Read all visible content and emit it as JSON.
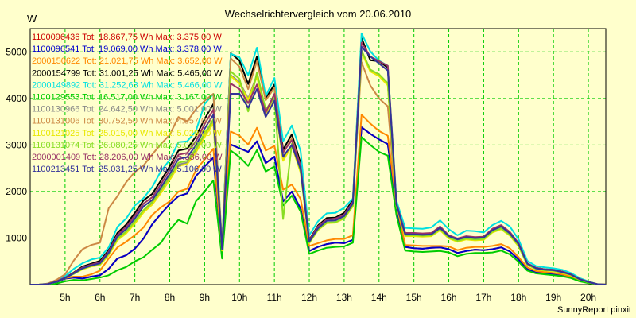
{
  "chart_data": {
    "type": "line",
    "title": "Wechselrichtervergleich vom 20.06.2010",
    "ylabel": "W",
    "xlabel": "",
    "footer": "SunnyReport pinxit",
    "ylim": [
      0,
      5500
    ],
    "xlim": [
      4.0,
      20.5
    ],
    "grid": true,
    "legend_placement": "top-left",
    "x_ticks": [
      {
        "value": 5,
        "label": "5h"
      },
      {
        "value": 6,
        "label": "6h"
      },
      {
        "value": 7,
        "label": "7h"
      },
      {
        "value": 8,
        "label": "8h"
      },
      {
        "value": 9,
        "label": "9h"
      },
      {
        "value": 10,
        "label": "10h"
      },
      {
        "value": 11,
        "label": "11h"
      },
      {
        "value": 12,
        "label": "12h"
      },
      {
        "value": 13,
        "label": "13h"
      },
      {
        "value": 14,
        "label": "14h"
      },
      {
        "value": 15,
        "label": "15h"
      },
      {
        "value": 16,
        "label": "16h"
      },
      {
        "value": 17,
        "label": "17h"
      },
      {
        "value": 18,
        "label": "18h"
      },
      {
        "value": 19,
        "label": "19h"
      },
      {
        "value": 20,
        "label": "20h"
      }
    ],
    "y_ticks": [
      {
        "value": 1000,
        "label": "1000"
      },
      {
        "value": 2000,
        "label": "2000"
      },
      {
        "value": 3000,
        "label": "3000"
      },
      {
        "value": 4000,
        "label": "4000"
      },
      {
        "value": 5000,
        "label": "5000"
      }
    ],
    "x": [
      4.0,
      4.25,
      4.5,
      4.75,
      5.0,
      5.25,
      5.5,
      5.75,
      6.0,
      6.25,
      6.5,
      6.75,
      7.0,
      7.25,
      7.5,
      7.75,
      8.0,
      8.25,
      8.5,
      8.75,
      9.0,
      9.25,
      9.5,
      9.75,
      10.0,
      10.25,
      10.5,
      10.75,
      11.0,
      11.25,
      11.5,
      11.75,
      12.0,
      12.25,
      12.5,
      12.75,
      13.0,
      13.25,
      13.5,
      13.75,
      14.0,
      14.25,
      14.5,
      14.75,
      15.0,
      15.25,
      15.5,
      15.75,
      16.0,
      16.25,
      16.5,
      16.75,
      17.0,
      17.25,
      17.5,
      17.75,
      18.0,
      18.25,
      18.5,
      18.75,
      19.0,
      19.25,
      19.5,
      19.75,
      20.0,
      20.25,
      20.5
    ],
    "series": [
      {
        "name": "1100096436 Tot: 18.867,75 Wh Max: 3.375,00 W",
        "color": "#cc0000",
        "values": [
          0,
          0,
          10,
          50,
          130,
          150,
          130,
          170,
          200,
          340,
          560,
          630,
          770,
          990,
          1300,
          1520,
          1730,
          1900,
          1960,
          2330,
          2540,
          2730,
          700,
          3010,
          2930,
          2850,
          3080,
          2610,
          2750,
          1790,
          2000,
          1630,
          720,
          810,
          870,
          900,
          890,
          960,
          3380,
          3240,
          3120,
          3020,
          1630,
          810,
          780,
          770,
          790,
          800,
          760,
          680,
          720,
          750,
          740,
          760,
          800,
          710,
          540,
          330,
          270,
          250,
          220,
          200,
          160,
          80,
          40,
          10,
          0
        ]
      },
      {
        "name": "1100096541 Tot: 19.069,00 Wh Max: 3.378,00 W",
        "color": "#0000cc",
        "values": [
          0,
          0,
          10,
          50,
          130,
          150,
          130,
          170,
          200,
          340,
          560,
          630,
          770,
          990,
          1300,
          1520,
          1730,
          1900,
          1960,
          2330,
          2540,
          2730,
          700,
          3010,
          2930,
          2850,
          3080,
          2610,
          2750,
          1790,
          2000,
          1630,
          720,
          810,
          870,
          900,
          890,
          960,
          3380,
          3240,
          3120,
          3020,
          1630,
          810,
          780,
          770,
          790,
          800,
          760,
          680,
          720,
          750,
          740,
          760,
          800,
          710,
          540,
          330,
          270,
          250,
          220,
          200,
          160,
          80,
          40,
          10,
          0
        ]
      },
      {
        "name": "2000150622 Tot: 21.021,75 Wh Max: 3.652,00 W",
        "color": "#ff8800",
        "values": [
          0,
          0,
          10,
          60,
          140,
          170,
          170,
          220,
          300,
          560,
          800,
          920,
          1060,
          1230,
          1500,
          1660,
          1790,
          2000,
          2060,
          2460,
          2690,
          2920,
          700,
          3290,
          3200,
          3010,
          3370,
          2880,
          2980,
          2040,
          2150,
          1840,
          830,
          890,
          950,
          980,
          980,
          1060,
          3650,
          3460,
          3300,
          3200,
          1720,
          850,
          840,
          830,
          830,
          830,
          820,
          740,
          790,
          810,
          810,
          830,
          870,
          780,
          590,
          370,
          290,
          270,
          250,
          220,
          170,
          90,
          40,
          10,
          0
        ]
      },
      {
        "name": "2000154799 Tot: 31.001,25 Wh Max: 5.465,00 W",
        "color": "#000000",
        "values": [
          0,
          0,
          10,
          70,
          150,
          260,
          390,
          450,
          510,
          740,
          1110,
          1290,
          1540,
          1810,
          1950,
          2240,
          2540,
          2880,
          2920,
          3180,
          3560,
          3880,
          800,
          4970,
          4810,
          4310,
          4900,
          4000,
          4300,
          2900,
          3230,
          2610,
          960,
          1270,
          1430,
          1440,
          1540,
          1820,
          5300,
          4820,
          4800,
          4660,
          1720,
          1100,
          1100,
          1090,
          1100,
          1240,
          1050,
          980,
          1030,
          1010,
          1020,
          1190,
          1270,
          1120,
          880,
          450,
          360,
          330,
          320,
          280,
          220,
          120,
          60,
          10,
          0
        ]
      },
      {
        "name": "2000149892 Tot: 31.252,63 Wh Max: 5.466,00 W",
        "color": "#00e0e0",
        "values": [
          0,
          0,
          20,
          90,
          180,
          340,
          460,
          540,
          580,
          800,
          1240,
          1420,
          1700,
          1860,
          2100,
          2440,
          2680,
          3060,
          3080,
          3300,
          3880,
          4100,
          860,
          4960,
          4880,
          4500,
          5090,
          4050,
          4440,
          3080,
          3420,
          2870,
          1060,
          1360,
          1530,
          1540,
          1650,
          1850,
          5400,
          5010,
          4810,
          4700,
          1800,
          1220,
          1210,
          1200,
          1230,
          1380,
          1190,
          1060,
          1160,
          1150,
          1120,
          1280,
          1370,
          1250,
          970,
          510,
          400,
          370,
          350,
          320,
          250,
          140,
          70,
          10,
          0
        ]
      },
      {
        "name": "1100129553 Tot: 16.517,00 Wh Max: 3.167,00 W",
        "color": "#00cc00",
        "values": [
          0,
          0,
          0,
          20,
          70,
          100,
          90,
          120,
          150,
          200,
          310,
          380,
          500,
          590,
          750,
          900,
          1180,
          1390,
          1310,
          1790,
          2000,
          2240,
          560,
          2880,
          2740,
          2550,
          2890,
          2430,
          2540,
          1700,
          1910,
          1570,
          660,
          730,
          790,
          810,
          820,
          900,
          3170,
          3000,
          2850,
          2770,
          1490,
          730,
          710,
          700,
          710,
          720,
          690,
          610,
          660,
          680,
          680,
          690,
          730,
          650,
          490,
          300,
          240,
          220,
          200,
          180,
          140,
          70,
          30,
          10,
          0
        ]
      },
      {
        "name": "1100130966 Tot: 24.642,50 Wh Max: 5.001,00 W",
        "color": "#888888",
        "values": [
          0,
          0,
          10,
          60,
          140,
          230,
          340,
          400,
          430,
          650,
          970,
          1120,
          1340,
          1580,
          1750,
          2000,
          2280,
          2580,
          2620,
          2870,
          3200,
          3500,
          740,
          4500,
          4350,
          4000,
          4500,
          3700,
          3980,
          2680,
          3000,
          2430,
          900,
          1180,
          1330,
          1340,
          1430,
          1690,
          5000,
          4600,
          4500,
          4300,
          1700,
          1050,
          1050,
          1040,
          1050,
          1180,
          1000,
          930,
          980,
          960,
          970,
          1130,
          1200,
          1060,
          830,
          430,
          340,
          310,
          300,
          260,
          210,
          110,
          50,
          10,
          0
        ]
      },
      {
        "name": "1100131006 Tot: 30.752,50 Wh Max: 4.857,00 W",
        "color": "#cc8844",
        "values": [
          0,
          0,
          20,
          100,
          220,
          520,
          760,
          850,
          900,
          1640,
          1900,
          2200,
          2420,
          2560,
          2800,
          3020,
          3220,
          3600,
          3500,
          3770,
          3950,
          4100,
          800,
          4860,
          4680,
          4200,
          4800,
          3960,
          4230,
          2820,
          3150,
          2540,
          940,
          1240,
          1390,
          1400,
          1500,
          1770,
          4780,
          4280,
          4000,
          3830,
          1700,
          1080,
          1080,
          1070,
          1080,
          1210,
          1030,
          960,
          1010,
          990,
          1000,
          1160,
          1240,
          1100,
          860,
          440,
          350,
          320,
          310,
          270,
          215,
          115,
          55,
          10,
          0
        ]
      },
      {
        "name": "1100121025 Tot: 25.015,00 Wh Max: 5.029,00 W",
        "color": "#e8e800",
        "values": [
          0,
          0,
          10,
          60,
          140,
          230,
          330,
          390,
          420,
          630,
          950,
          1100,
          1310,
          1550,
          1720,
          1970,
          2250,
          2550,
          2590,
          2840,
          3170,
          3470,
          730,
          4480,
          4320,
          3970,
          4470,
          3680,
          3950,
          2660,
          2980,
          2410,
          890,
          1170,
          1320,
          1330,
          1420,
          1680,
          4990,
          4580,
          4480,
          4280,
          1690,
          1040,
          1040,
          1030,
          1040,
          1170,
          990,
          920,
          970,
          950,
          960,
          1120,
          1190,
          1050,
          820,
          420,
          330,
          300,
          290,
          250,
          200,
          105,
          50,
          10,
          0
        ]
      },
      {
        "name": "1100131074 Tot: 26.080,25 Wh Max: 5.029,00 W",
        "color": "#88dd22",
        "values": [
          0,
          0,
          10,
          60,
          140,
          230,
          340,
          400,
          440,
          660,
          990,
          1140,
          1360,
          1600,
          1780,
          2040,
          2320,
          2620,
          2660,
          2920,
          3250,
          3550,
          760,
          4580,
          4420,
          3720,
          4560,
          3760,
          4020,
          1410,
          3030,
          2450,
          900,
          1180,
          1330,
          1340,
          1430,
          1700,
          5030,
          4620,
          4520,
          4330,
          1710,
          1060,
          1060,
          1050,
          1060,
          1190,
          1010,
          940,
          990,
          970,
          980,
          1140,
          1210,
          1070,
          840,
          430,
          340,
          310,
          300,
          260,
          210,
          110,
          50,
          10,
          0
        ]
      },
      {
        "name": "2000001409 Tot: 28.206,00 Wh Max: 5.336,00 W",
        "color": "#993366",
        "values": [
          0,
          0,
          10,
          70,
          150,
          250,
          370,
          430,
          480,
          710,
          1070,
          1240,
          1480,
          1740,
          1880,
          2160,
          2460,
          2790,
          2830,
          3080,
          3450,
          3760,
          780,
          4320,
          4200,
          3900,
          4300,
          3700,
          4100,
          2850,
          3100,
          2550,
          950,
          1250,
          1400,
          1420,
          1500,
          1780,
          5200,
          4900,
          4800,
          4700,
          1740,
          1110,
          1110,
          1100,
          1110,
          1250,
          1060,
          990,
          1040,
          1020,
          1030,
          1200,
          1280,
          1130,
          890,
          460,
          360,
          330,
          320,
          280,
          220,
          120,
          60,
          10,
          0
        ]
      },
      {
        "name": "1100213451 Tot: 25.031,25 Wh Max: 5.106,00 W",
        "color": "#333399",
        "values": [
          0,
          0,
          10,
          60,
          140,
          240,
          350,
          410,
          460,
          680,
          1030,
          1190,
          1420,
          1680,
          1820,
          2090,
          2380,
          2700,
          2740,
          2990,
          3350,
          3650,
          760,
          4100,
          4100,
          3800,
          4200,
          3600,
          3950,
          2750,
          3000,
          2480,
          920,
          1210,
          1370,
          1380,
          1470,
          1740,
          5110,
          4900,
          4750,
          4600,
          1720,
          1080,
          1080,
          1070,
          1080,
          1220,
          1040,
          970,
          1020,
          1000,
          1010,
          1170,
          1250,
          1100,
          870,
          450,
          350,
          320,
          310,
          270,
          215,
          115,
          55,
          10,
          0
        ]
      }
    ]
  }
}
